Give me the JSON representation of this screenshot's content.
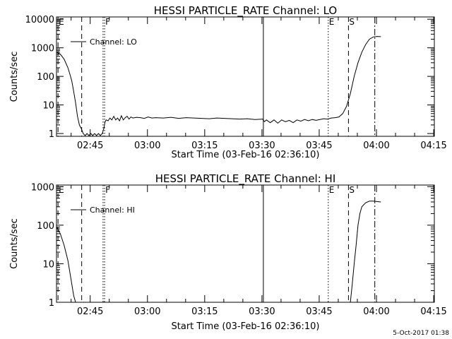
{
  "footer": {
    "timestamp": "5-Oct-2017 01:38"
  },
  "chart_data": [
    {
      "type": "line",
      "title": "HESSI PARTICLE_RATE Channel: LO",
      "xlabel": "Start Time (03-Feb-16 02:36:10)",
      "ylabel": "Counts/sec",
      "yscale": "log",
      "xlim_minutes_after_start": [
        0,
        99
      ],
      "ylim": [
        0.8,
        12000
      ],
      "x_ticks": [
        "02:45",
        "03:00",
        "03:15",
        "03:30",
        "03:45",
        "04:00",
        "04:15"
      ],
      "x_tick_minutes": [
        8.83,
        23.83,
        38.83,
        53.83,
        68.83,
        83.83,
        98.83
      ],
      "y_ticks": [
        "1",
        "10",
        "100",
        "1000",
        "10000"
      ],
      "y_tick_values": [
        1,
        10,
        100,
        1000,
        10000
      ],
      "legend": {
        "label": "Channel: LO",
        "position": "top-left"
      },
      "markers": [
        {
          "label": "E",
          "minute": 0.4,
          "style": "dashed"
        },
        {
          "label": "F",
          "minute": 12.6,
          "style": "dotted"
        },
        {
          "label": "",
          "minute": 54.2,
          "style": "solid"
        },
        {
          "label": "E",
          "minute": 71.2,
          "style": "dotted"
        },
        {
          "label": "S",
          "minute": 76.5,
          "style": "dashed"
        },
        {
          "label": "",
          "minute": 83.4,
          "style": "dashdot"
        }
      ],
      "extra_lines": [
        {
          "minute": 6.6,
          "style": "dashed"
        },
        {
          "minute": 12.2,
          "style": "dotted"
        }
      ],
      "series": [
        {
          "x": [
            0,
            1,
            2,
            3,
            3.5,
            4,
            4.5,
            5,
            5.5,
            6,
            6.5,
            7,
            7.5,
            8,
            8.5,
            9,
            9.5,
            10,
            10.5,
            11,
            11.5,
            12,
            12.4,
            12.7,
            13,
            13.5,
            14,
            14.5,
            15,
            15.5,
            16,
            16.5,
            17,
            17.5,
            18,
            18.5,
            19,
            19.5,
            20,
            21,
            22,
            23,
            24,
            25,
            26,
            28,
            30,
            32,
            34,
            36,
            38,
            40,
            42,
            44,
            46,
            48,
            50,
            52,
            54,
            54.5,
            55,
            56,
            57,
            58,
            59,
            60,
            61,
            62,
            63,
            64,
            65,
            66,
            67,
            68,
            69,
            70,
            71,
            72,
            73,
            74,
            75,
            76,
            77,
            78,
            79,
            80,
            81,
            82,
            83,
            84,
            85
          ],
          "y": [
            700,
            600,
            400,
            200,
            120,
            70,
            30,
            12,
            4,
            2,
            1.5,
            1,
            0.85,
            1,
            0.85,
            1,
            0.85,
            1,
            0.85,
            1,
            0.85,
            1,
            1.5,
            2.5,
            3,
            2.8,
            3.5,
            3,
            4,
            3,
            3.5,
            2.8,
            4.2,
            3,
            3.6,
            4,
            3.2,
            3.8,
            3.5,
            3.7,
            3.6,
            3.4,
            3.8,
            3.5,
            3.6,
            3.5,
            3.7,
            3.4,
            3.6,
            3.5,
            3.4,
            3.3,
            3.5,
            3.4,
            3.3,
            3.2,
            3.3,
            3.1,
            3.2,
            2.6,
            3,
            2.4,
            3,
            2.3,
            3,
            2.6,
            2.9,
            2.4,
            3,
            2.7,
            3.1,
            2.8,
            3.1,
            2.9,
            3.1,
            3.3,
            3.2,
            3.5,
            3.6,
            3.8,
            5,
            9,
            25,
            100,
            300,
            700,
            1300,
            2000,
            2400,
            2500,
            2450
          ]
        }
      ]
    },
    {
      "type": "line",
      "title": "HESSI PARTICLE_RATE Channel: HI",
      "xlabel": "Start Time (03-Feb-16 02:36:10)",
      "ylabel": "Counts/sec",
      "yscale": "log",
      "xlim_minutes_after_start": [
        0,
        99
      ],
      "ylim": [
        1,
        1100
      ],
      "x_ticks": [
        "02:45",
        "03:00",
        "03:15",
        "03:30",
        "03:45",
        "04:00",
        "04:15"
      ],
      "x_tick_minutes": [
        8.83,
        23.83,
        38.83,
        53.83,
        68.83,
        83.83,
        98.83
      ],
      "y_ticks": [
        "1",
        "10",
        "100",
        "1000"
      ],
      "y_tick_values": [
        1,
        10,
        100,
        1000
      ],
      "legend": {
        "label": "Channel: HI",
        "position": "top-left"
      },
      "markers": [
        {
          "label": "E",
          "minute": 0.4,
          "style": "dashed"
        },
        {
          "label": "F",
          "minute": 12.6,
          "style": "dotted"
        },
        {
          "label": "",
          "minute": 54.2,
          "style": "solid"
        },
        {
          "label": "E",
          "minute": 71.2,
          "style": "dotted"
        },
        {
          "label": "S",
          "minute": 76.5,
          "style": "dashed"
        },
        {
          "label": "",
          "minute": 83.4,
          "style": "dashdot"
        }
      ],
      "extra_lines": [
        {
          "minute": 6.6,
          "style": "dashed"
        },
        {
          "minute": 12.2,
          "style": "dotted"
        }
      ],
      "series": [
        {
          "x": [
            0,
            1,
            2,
            3,
            3.8,
            4.5,
            5,
            77,
            77.5,
            78,
            78.5,
            79,
            79.5,
            80,
            81,
            82,
            83,
            84,
            85
          ],
          "y": [
            90,
            60,
            30,
            12,
            4,
            1.5,
            1,
            1,
            3,
            10,
            30,
            100,
            200,
            300,
            380,
            420,
            420,
            410,
            400
          ]
        }
      ]
    }
  ]
}
